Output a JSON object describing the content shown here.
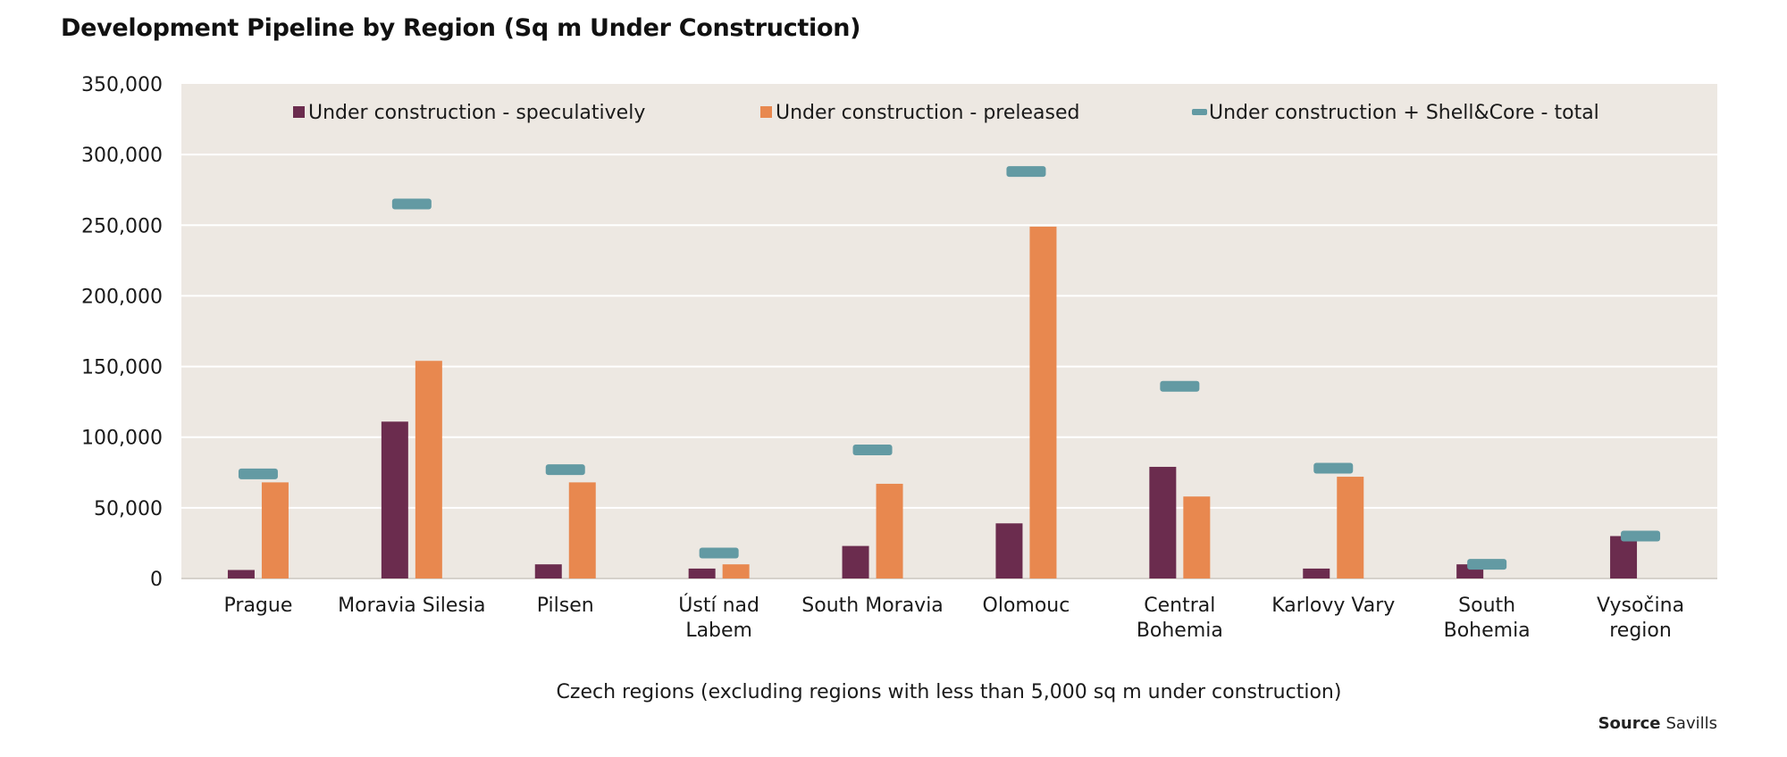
{
  "chart_data": {
    "type": "bar",
    "title": "Development Pipeline by Region (Sq m Under Construction)",
    "xlabel": "Czech regions (excluding regions with less than 5,000 sq m under construction)",
    "ylabel": "",
    "ylim": [
      0,
      350000
    ],
    "yticks": [
      0,
      50000,
      100000,
      150000,
      200000,
      250000,
      300000,
      350000
    ],
    "ytick_labels": [
      "0",
      "50,000",
      "100,000",
      "150,000",
      "200,000",
      "250,000",
      "300,000",
      "350,000"
    ],
    "grid": true,
    "legend_position": "top-center",
    "categories": [
      [
        "Prague"
      ],
      [
        "Moravia Silesia"
      ],
      [
        "Pilsen"
      ],
      [
        "Ústí nad",
        "Labem"
      ],
      [
        "South Moravia"
      ],
      [
        "Olomouc"
      ],
      [
        "Central",
        "Bohemia"
      ],
      [
        "Karlovy Vary"
      ],
      [
        "South",
        "Bohemia"
      ],
      [
        "Vysočina",
        "region"
      ]
    ],
    "series": [
      {
        "name": "Under construction - speculatively",
        "kind": "bar",
        "color": "#6b2c4e",
        "values": [
          6000,
          111000,
          10000,
          7000,
          23000,
          39000,
          79000,
          7000,
          10000,
          30000
        ]
      },
      {
        "name": "Under construction - preleased",
        "kind": "bar",
        "color": "#e8884f",
        "values": [
          68000,
          154000,
          68000,
          10000,
          67000,
          249000,
          58000,
          72000,
          0,
          0
        ]
      },
      {
        "name": "Under construction + Shell&Core - total",
        "kind": "marker",
        "color": "#639aa3",
        "values": [
          74000,
          265000,
          77000,
          18000,
          91000,
          288000,
          136000,
          78000,
          10000,
          30000
        ]
      }
    ]
  },
  "source": {
    "label": "Source",
    "value": "Savills"
  },
  "colors": {
    "plot_bg": "#ede8e2",
    "grid": "#ffffff"
  }
}
